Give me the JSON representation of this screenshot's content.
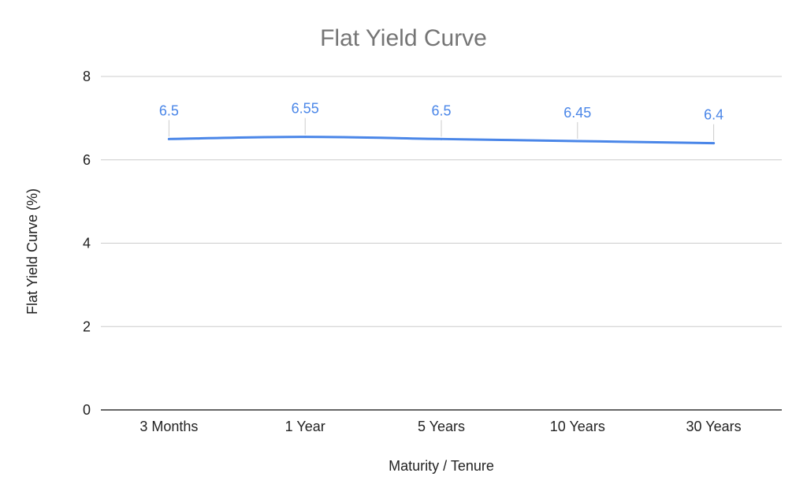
{
  "chart_data": {
    "type": "line",
    "title": "Flat Yield Curve",
    "xlabel": "Maturity / Tenure",
    "ylabel": "Flat Yield Curve (%)",
    "categories": [
      "3 Months",
      "1 Year",
      "5 Years",
      "10 Years",
      "30 Years"
    ],
    "series": [
      {
        "values": [
          6.5,
          6.55,
          6.5,
          6.45,
          6.4
        ],
        "labels": [
          "6.5",
          "6.55",
          "6.5",
          "6.45",
          "6.4"
        ],
        "color": "#4a86e8"
      }
    ],
    "ylim": [
      0,
      8
    ],
    "yticks": [
      "0",
      "2",
      "4",
      "6",
      "8"
    ],
    "grid": true,
    "legend": "none"
  }
}
